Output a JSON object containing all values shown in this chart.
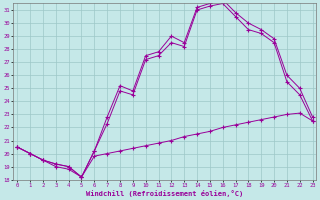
{
  "xlabel": "Windchill (Refroidissement éolien,°C)",
  "bg_color": "#c5e8e8",
  "line_color": "#990099",
  "grid_color": "#9ec8c8",
  "xlim_min": -0.3,
  "xlim_max": 23.3,
  "ylim_min": 18,
  "ylim_max": 31.5,
  "xticks": [
    0,
    1,
    2,
    3,
    4,
    5,
    6,
    7,
    8,
    9,
    10,
    11,
    12,
    13,
    14,
    15,
    16,
    17,
    18,
    19,
    20,
    21,
    22,
    23
  ],
  "yticks": [
    18,
    19,
    20,
    21,
    22,
    23,
    24,
    25,
    26,
    27,
    28,
    29,
    30,
    31
  ],
  "line1_x": [
    0,
    1,
    2,
    3,
    4,
    5,
    6,
    7,
    8,
    9,
    10,
    11,
    12,
    13,
    14,
    15,
    16,
    17,
    18,
    19,
    20,
    21,
    22,
    23
  ],
  "line1_y": [
    20.5,
    20.0,
    19.5,
    19.0,
    18.8,
    18.2,
    19.8,
    20.0,
    20.2,
    20.4,
    20.6,
    20.8,
    21.0,
    21.3,
    21.5,
    21.7,
    22.0,
    22.2,
    22.4,
    22.6,
    22.8,
    23.0,
    23.1,
    22.5
  ],
  "line2_x": [
    0,
    1,
    2,
    3,
    4,
    5,
    6,
    7,
    8,
    9,
    10,
    11,
    12,
    13,
    14,
    15,
    16,
    17,
    18,
    19,
    20,
    21,
    22,
    23
  ],
  "line2_y": [
    20.5,
    20.0,
    19.5,
    19.2,
    19.0,
    18.2,
    20.2,
    22.3,
    24.8,
    24.5,
    27.2,
    27.5,
    28.5,
    28.2,
    31.0,
    31.3,
    31.5,
    30.5,
    29.5,
    29.2,
    28.5,
    25.5,
    24.5,
    22.5
  ],
  "line3_x": [
    0,
    1,
    2,
    3,
    4,
    5,
    6,
    7,
    8,
    9,
    10,
    11,
    12,
    13,
    14,
    15,
    16,
    17,
    18,
    19,
    20,
    21,
    22,
    23
  ],
  "line3_y": [
    20.5,
    20.0,
    19.5,
    19.2,
    19.0,
    18.2,
    20.2,
    22.8,
    25.2,
    24.8,
    27.5,
    27.8,
    29.0,
    28.5,
    31.2,
    31.5,
    31.8,
    30.8,
    30.0,
    29.5,
    28.8,
    26.0,
    25.0,
    22.8
  ]
}
